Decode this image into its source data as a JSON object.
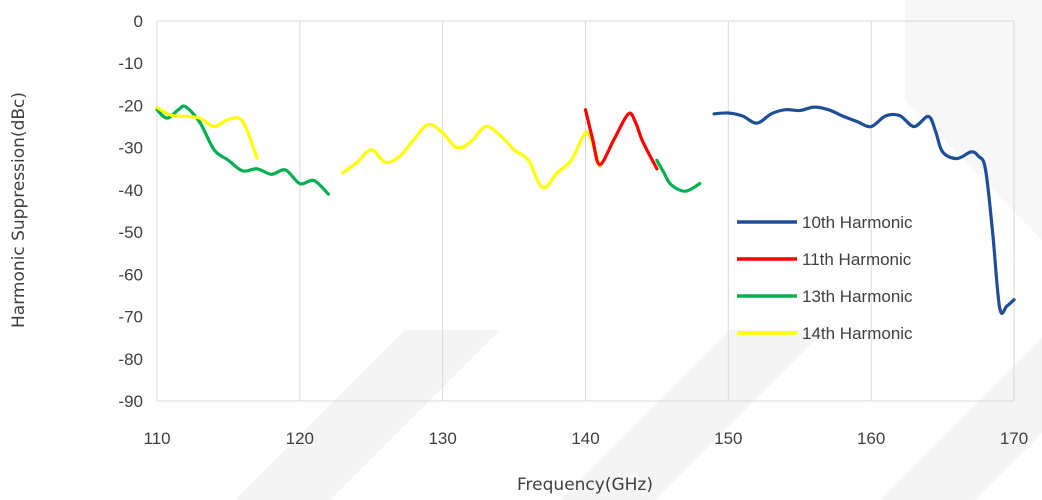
{
  "chart_data": {
    "type": "line",
    "title": "",
    "xlabel": "Frequency(GHz)",
    "ylabel": "Harmonic Suppression(dBc)",
    "xlim": [
      110,
      170
    ],
    "ylim": [
      -90,
      0
    ],
    "xticks": [
      110,
      120,
      130,
      140,
      150,
      160,
      170
    ],
    "yticks": [
      0,
      -10,
      -20,
      -30,
      -40,
      -50,
      -60,
      -70,
      -80,
      -90
    ],
    "grid": "vertical",
    "legend_position": "right",
    "series": [
      {
        "name": "10th Harmonic",
        "color": "#1F4E99",
        "points": [
          [
            149,
            -22
          ],
          [
            150,
            -21.8
          ],
          [
            151,
            -22.5
          ],
          [
            152,
            -24.2
          ],
          [
            153,
            -22
          ],
          [
            154,
            -21
          ],
          [
            155,
            -21.2
          ],
          [
            156,
            -20.4
          ],
          [
            157,
            -21
          ],
          [
            158,
            -22.5
          ],
          [
            159,
            -23.8
          ],
          [
            160,
            -25
          ],
          [
            161,
            -22.5
          ],
          [
            162,
            -22.4
          ],
          [
            163,
            -25
          ],
          [
            164,
            -22.6
          ],
          [
            164.5,
            -26
          ],
          [
            165,
            -31
          ],
          [
            166,
            -32.6
          ],
          [
            167,
            -31
          ],
          [
            167.5,
            -32
          ],
          [
            168,
            -35
          ],
          [
            168.5,
            -50
          ],
          [
            169,
            -68
          ],
          [
            169.5,
            -67.5
          ],
          [
            170,
            -66
          ]
        ]
      },
      {
        "name": "11th Harmonic",
        "color": "#FF0000",
        "points": [
          [
            140,
            -21
          ],
          [
            140.5,
            -28
          ],
          [
            141,
            -34
          ],
          [
            142,
            -28
          ],
          [
            143,
            -22
          ],
          [
            143.5,
            -24
          ],
          [
            144,
            -28.5
          ],
          [
            145,
            -35
          ]
        ]
      },
      {
        "name": "13th Harmonic",
        "color": "#00B050",
        "points": [
          [
            110,
            -21
          ],
          [
            110.7,
            -23
          ],
          [
            111.5,
            -21
          ],
          [
            112,
            -20.3
          ],
          [
            113,
            -24
          ],
          [
            114,
            -30.5
          ],
          [
            115,
            -33
          ],
          [
            116,
            -35.5
          ],
          [
            117,
            -35
          ],
          [
            118,
            -36.3
          ],
          [
            119,
            -35.3
          ],
          [
            120,
            -38.5
          ],
          [
            121,
            -37.8
          ],
          [
            122,
            -41
          ]
        ],
        "points_b": [
          [
            145,
            -33
          ],
          [
            145.5,
            -36
          ],
          [
            146,
            -38.8
          ],
          [
            147,
            -40.3
          ],
          [
            148,
            -38.5
          ]
        ]
      },
      {
        "name": "14th Harmonic",
        "color": "#FFFF00",
        "points": [
          [
            110,
            -20.5
          ],
          [
            111,
            -22.3
          ],
          [
            112,
            -22.6
          ],
          [
            113,
            -23
          ],
          [
            114,
            -25
          ],
          [
            115,
            -23.3
          ],
          [
            116,
            -23.8
          ],
          [
            117,
            -32.5
          ]
        ],
        "points_b": [
          [
            123,
            -36
          ],
          [
            124,
            -33.5
          ],
          [
            125,
            -30.5
          ],
          [
            126,
            -33.5
          ],
          [
            127,
            -32
          ],
          [
            128,
            -28
          ],
          [
            129,
            -24.5
          ],
          [
            130,
            -26.5
          ],
          [
            131,
            -30
          ],
          [
            132,
            -28.5
          ],
          [
            133,
            -25
          ],
          [
            134,
            -27
          ],
          [
            135,
            -30.5
          ],
          [
            136,
            -33
          ],
          [
            137,
            -39.5
          ],
          [
            138,
            -36
          ],
          [
            139,
            -33
          ],
          [
            140,
            -26.5
          ],
          [
            140.5,
            -29
          ],
          [
            141,
            -34.5
          ]
        ]
      }
    ]
  }
}
